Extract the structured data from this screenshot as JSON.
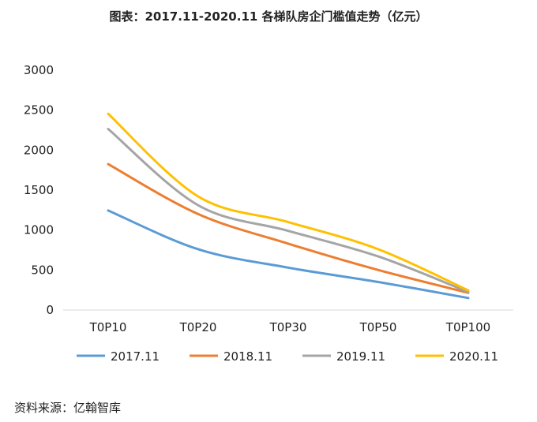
{
  "chart_data": {
    "type": "line",
    "title": "图表：2017.11-2020.11 各梯队房企门槛值走势（亿元）",
    "categories": [
      "T0P10",
      "T0P20",
      "T0P30",
      "T0P50",
      "T0P100"
    ],
    "ylim": [
      0,
      3000
    ],
    "yticks": [
      0,
      500,
      1000,
      1500,
      2000,
      2500,
      3000
    ],
    "grid": false,
    "legend": "bottom",
    "series": [
      {
        "name": "2017.11",
        "color": "#5b9bd5",
        "values": [
          1245,
          760,
          530,
          350,
          150
        ]
      },
      {
        "name": "2018.11",
        "color": "#ed7d31",
        "values": [
          1825,
          1200,
          830,
          500,
          215
        ]
      },
      {
        "name": "2019.11",
        "color": "#a5a5a5",
        "values": [
          2265,
          1310,
          990,
          670,
          225
        ]
      },
      {
        "name": "2020.11",
        "color": "#ffc000",
        "values": [
          2455,
          1420,
          1100,
          760,
          245
        ]
      }
    ]
  },
  "source": "资料来源：亿翰智库"
}
